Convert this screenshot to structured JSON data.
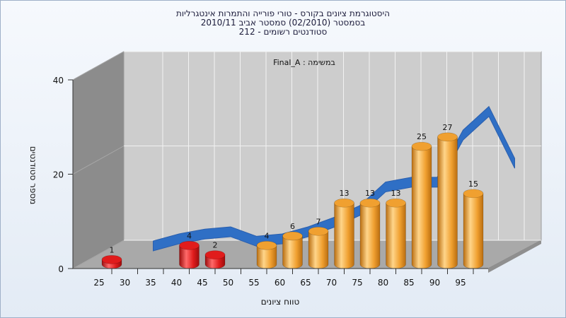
{
  "chart_data": {
    "type": "bar",
    "title_lines": [
      "היסטוגרמת ציונים בקורס - טורי פורייה והתמרות אינטגרליות",
      "בסמסטר  (02/2010)  סמסטר אביב 2010/11",
      "סטודנטים רשומים - 212"
    ],
    "subtitle": "במשימה : Final_A",
    "xlabel": "טווח ציונים",
    "ylabel": "מספר סטודנטים",
    "x_ticks": [
      "25",
      "30",
      "35",
      "40",
      "45",
      "50",
      "55",
      "60",
      "65",
      "70",
      "75",
      "80",
      "85",
      "90",
      "95"
    ],
    "y_ticks": [
      "0",
      "20",
      "40"
    ],
    "ylim": [
      0,
      40
    ],
    "grid": true,
    "bars": [
      {
        "x": 25,
        "value": 1,
        "label": "1",
        "color": "#e01c1c"
      },
      {
        "x": 40,
        "value": 4,
        "label": "4",
        "color": "#e01c1c"
      },
      {
        "x": 45,
        "value": 2,
        "label": "2",
        "color": "#e01c1c"
      },
      {
        "x": 55,
        "value": 4,
        "label": "4",
        "color": "#f0a030"
      },
      {
        "x": 60,
        "value": 6,
        "label": "6",
        "color": "#f0a030"
      },
      {
        "x": 65,
        "value": 7,
        "label": "7",
        "color": "#f0a030"
      },
      {
        "x": 70,
        "value": 13,
        "label": "13",
        "color": "#f0a030"
      },
      {
        "x": 75,
        "value": 13,
        "label": "13",
        "color": "#f0a030"
      },
      {
        "x": 80,
        "value": 13,
        "label": "13",
        "color": "#f0a030"
      },
      {
        "x": 85,
        "value": 25,
        "label": "25",
        "color": "#f0a030"
      },
      {
        "x": 90,
        "value": 27,
        "label": "27",
        "color": "#f0a030"
      },
      {
        "x": 95,
        "value": 15,
        "label": "15",
        "color": "#f0a030"
      }
    ],
    "trend_line": {
      "x": [
        30,
        35,
        40,
        45,
        50,
        55,
        60,
        65,
        70,
        75,
        80,
        85,
        90,
        95,
        100
      ],
      "values": [
        1.5,
        3,
        4,
        4.5,
        2.5,
        3,
        4.5,
        6.5,
        9,
        14,
        15,
        15,
        25,
        30,
        19
      ],
      "color": "#2f6fc5"
    },
    "colors": {
      "fail_bar": "#e01c1c",
      "pass_bar": "#f0a030",
      "trend": "#2f6fc5",
      "back_wall": "#cdcdcd",
      "side_wall": "#8c8c8c",
      "floor": "#a9a9a9"
    }
  }
}
